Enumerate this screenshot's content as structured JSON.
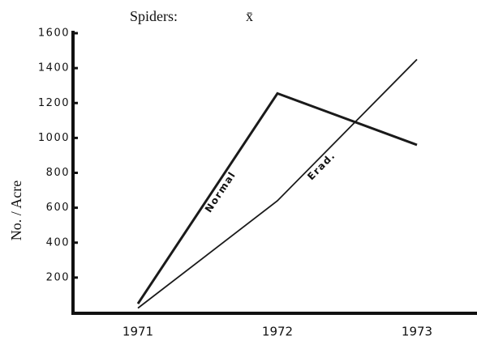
{
  "chart_data": {
    "type": "line",
    "title": "Spiders:",
    "subtitle": "x̄",
    "y_label": "No. / Acre",
    "categories": [
      "1971",
      "1972",
      "1973"
    ],
    "series": [
      {
        "name": "Normal",
        "color": "#1a1a1a",
        "values": [
          50,
          1255,
          960
        ]
      },
      {
        "name": "Erad.",
        "color": "#1a1a1a",
        "values": [
          25,
          640,
          1450
        ]
      }
    ],
    "ylim": [
      0,
      1600
    ],
    "yticks": [
      200,
      400,
      600,
      800,
      1000,
      1200,
      1400,
      1600
    ]
  }
}
